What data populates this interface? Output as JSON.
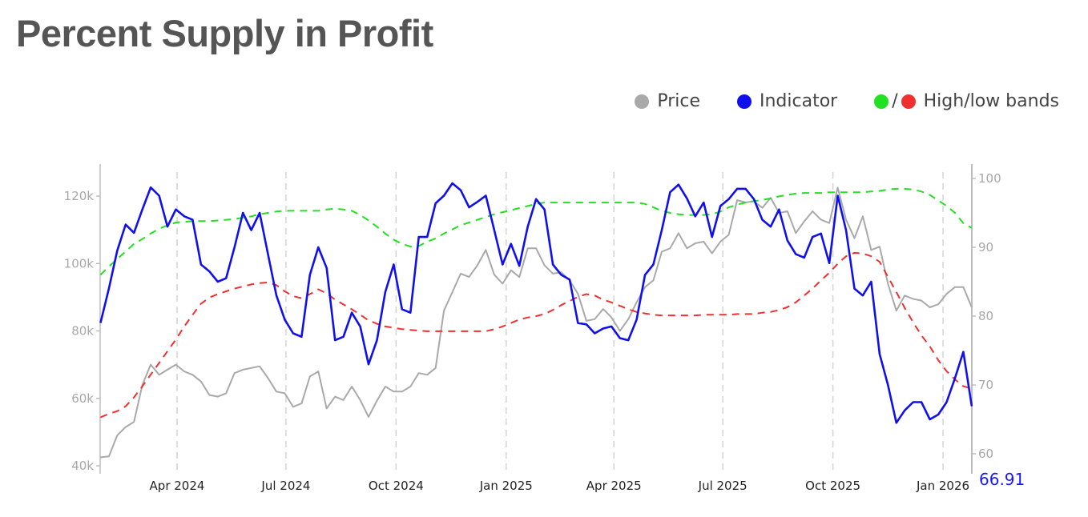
{
  "title": "Percent Supply in Profit",
  "legend": {
    "price": {
      "label": "Price",
      "color": "#a9a9a9"
    },
    "indicator": {
      "label": "Indicator",
      "color": "#1010ee"
    },
    "bands": {
      "label": "High/low bands",
      "separator": "/",
      "high_color": "#22e022",
      "low_color": "#f03030"
    }
  },
  "chart_data": {
    "type": "line",
    "title": "Percent Supply in Profit",
    "legend_position": "top-right",
    "grid": {
      "vertical_dashed": true,
      "horizontal": false
    },
    "x_ticks": [
      {
        "date": "2024-04-01",
        "label": "Apr 2024"
      },
      {
        "date": "2024-07-01",
        "label": "Jul 2024"
      },
      {
        "date": "2024-10-01",
        "label": "Oct 2024"
      },
      {
        "date": "2025-01-01",
        "label": "Jan 2025"
      },
      {
        "date": "2025-04-01",
        "label": "Apr 2025"
      },
      {
        "date": "2025-07-01",
        "label": "Jul 2025"
      },
      {
        "date": "2025-10-01",
        "label": "Oct 2025"
      },
      {
        "date": "2026-01-01",
        "label": "Jan 2026"
      }
    ],
    "y_left": {
      "range": [
        38000,
        128000
      ],
      "ticks": [
        {
          "value": 40000,
          "label": "40k"
        },
        {
          "value": 60000,
          "label": "60k"
        },
        {
          "value": 80000,
          "label": "80k"
        },
        {
          "value": 100000,
          "label": "100k"
        },
        {
          "value": 120000,
          "label": "120k"
        }
      ]
    },
    "y_right": {
      "range": [
        58.5,
        101.5
      ],
      "ticks": [
        {
          "value": 60,
          "label": "60"
        },
        {
          "value": 70,
          "label": "70"
        },
        {
          "value": 80,
          "label": "80"
        },
        {
          "value": 90,
          "label": "90"
        },
        {
          "value": 100,
          "label": "100"
        }
      ]
    },
    "last_value_label": "66.91",
    "x": [
      "2024-01-28",
      "2024-02-04",
      "2024-02-11",
      "2024-02-18",
      "2024-02-25",
      "2024-03-03",
      "2024-03-10",
      "2024-03-17",
      "2024-03-24",
      "2024-03-31",
      "2024-04-07",
      "2024-04-14",
      "2024-04-21",
      "2024-04-28",
      "2024-05-05",
      "2024-05-12",
      "2024-05-19",
      "2024-05-26",
      "2024-06-02",
      "2024-06-09",
      "2024-06-16",
      "2024-06-23",
      "2024-06-30",
      "2024-07-07",
      "2024-07-14",
      "2024-07-21",
      "2024-07-28",
      "2024-08-04",
      "2024-08-11",
      "2024-08-18",
      "2024-08-25",
      "2024-09-01",
      "2024-09-08",
      "2024-09-15",
      "2024-09-22",
      "2024-09-29",
      "2024-10-06",
      "2024-10-13",
      "2024-10-20",
      "2024-10-27",
      "2024-11-03",
      "2024-11-10",
      "2024-11-17",
      "2024-11-24",
      "2024-12-01",
      "2024-12-08",
      "2024-12-15",
      "2024-12-22",
      "2024-12-29",
      "2025-01-05",
      "2025-01-12",
      "2025-01-19",
      "2025-01-26",
      "2025-02-02",
      "2025-02-09",
      "2025-02-16",
      "2025-02-23",
      "2025-03-02",
      "2025-03-09",
      "2025-03-16",
      "2025-03-23",
      "2025-03-30",
      "2025-04-06",
      "2025-04-13",
      "2025-04-20",
      "2025-04-27",
      "2025-05-04",
      "2025-05-11",
      "2025-05-18",
      "2025-05-25",
      "2025-06-01",
      "2025-06-08",
      "2025-06-15",
      "2025-06-22",
      "2025-06-29",
      "2025-07-06",
      "2025-07-13",
      "2025-07-20",
      "2025-07-27",
      "2025-08-03",
      "2025-08-10",
      "2025-08-17",
      "2025-08-24",
      "2025-08-31",
      "2025-09-07",
      "2025-09-14",
      "2025-09-21",
      "2025-09-28",
      "2025-10-05",
      "2025-10-12",
      "2025-10-19",
      "2025-10-26",
      "2025-11-02",
      "2025-11-09",
      "2025-11-16",
      "2025-11-23",
      "2025-11-30",
      "2025-12-07",
      "2025-12-14",
      "2025-12-21",
      "2025-12-28",
      "2026-01-04",
      "2026-01-11",
      "2026-01-18",
      "2026-01-25"
    ],
    "series": [
      {
        "name": "Price",
        "axis": "left",
        "color": "#a9a9a9",
        "style": "solid",
        "values": [
          42500,
          42800,
          49000,
          51500,
          53000,
          64000,
          70000,
          67000,
          68500,
          70000,
          68000,
          67000,
          65000,
          61000,
          60500,
          61500,
          67500,
          68500,
          69000,
          69500,
          66000,
          62000,
          61500,
          57500,
          58500,
          66500,
          68000,
          57000,
          60500,
          59500,
          63500,
          59500,
          54500,
          59300,
          63500,
          62000,
          62000,
          63500,
          67500,
          67000,
          69000,
          86000,
          91500,
          97000,
          96000,
          99500,
          104000,
          96700,
          94000,
          98000,
          96000,
          104500,
          104500,
          99500,
          97000,
          97400,
          95000,
          91000,
          83000,
          83500,
          86500,
          84000,
          80000,
          83500,
          88500,
          93000,
          95000,
          103500,
          104500,
          109000,
          104500,
          106000,
          106500,
          103000,
          106500,
          108500,
          118800,
          118100,
          118500,
          116500,
          119500,
          115000,
          115500,
          109000,
          112500,
          115500,
          113000,
          112000,
          122500,
          113000,
          107500,
          114000,
          104000,
          105000,
          94000,
          86000,
          90500,
          89500,
          89000,
          87000,
          87900,
          91000,
          93000,
          93000,
          87000
        ]
      },
      {
        "name": "Indicator",
        "axis": "right",
        "color": "#1010ee",
        "style": "solid",
        "values": [
          79,
          84,
          89.5,
          93.3,
          92.1,
          95.5,
          98.7,
          97.5,
          93,
          95.5,
          94.5,
          94,
          87.5,
          86.5,
          85,
          85.5,
          90,
          95,
          92.5,
          95,
          89,
          83,
          79.5,
          77.5,
          77,
          86,
          90,
          87,
          76.5,
          77,
          80.5,
          78.5,
          73,
          76.5,
          83.5,
          87.5,
          81,
          80.5,
          91.5,
          91.5,
          96.4,
          97.5,
          99.3,
          98.3,
          95.8,
          96.6,
          97.5,
          92.5,
          87.5,
          90.5,
          87.3,
          93,
          97,
          95.5,
          87.5,
          86,
          85.3,
          79,
          78.8,
          77.5,
          78.2,
          78.5,
          76.8,
          76.5,
          79.5,
          86,
          87.5,
          92.5,
          98,
          99.1,
          97.1,
          94.5,
          96.5,
          91.5,
          96,
          97,
          98.5,
          98.5,
          97,
          94,
          93,
          95.5,
          91,
          89,
          88.5,
          91.5,
          92,
          87.7,
          97.5,
          92.5,
          84,
          83,
          85,
          74.5,
          70,
          64.5,
          66.3,
          67.5,
          67.5,
          65,
          65.7,
          67.5,
          71,
          74.8,
          66.91
        ]
      },
      {
        "name": "High band",
        "axis": "right",
        "color": "#22e022",
        "style": "dashed",
        "values": [
          86,
          87.2,
          88.3,
          89.4,
          90.5,
          91.2,
          92,
          92.7,
          93.2,
          93.6,
          93.7,
          93.8,
          93.8,
          93.8,
          93.9,
          94,
          94.1,
          94.3,
          94.5,
          94.8,
          95,
          95.2,
          95.3,
          95.3,
          95.3,
          95.3,
          95.3,
          95.5,
          95.6,
          95.5,
          95.3,
          94.7,
          93.9,
          93,
          92,
          91.1,
          90.5,
          90.1,
          90.2,
          90.8,
          91.3,
          92,
          92.6,
          93.2,
          93.6,
          94,
          94.4,
          94.8,
          95.1,
          95.4,
          95.7,
          96,
          96.3,
          96.5,
          96.5,
          96.5,
          96.5,
          96.5,
          96.5,
          96.5,
          96.5,
          96.5,
          96.5,
          96.5,
          96.5,
          96.3,
          95.8,
          95.3,
          95,
          94.8,
          94.7,
          94.7,
          94.7,
          94.8,
          95.2,
          95.8,
          96.2,
          96.5,
          96.7,
          96.9,
          97.1,
          97.4,
          97.6,
          97.8,
          97.9,
          97.9,
          97.9,
          98,
          98,
          98,
          98,
          98,
          98.1,
          98.2,
          98.4,
          98.5,
          98.5,
          98.4,
          98.1,
          97.6,
          96.8,
          96,
          95,
          93.5,
          92.8
        ]
      },
      {
        "name": "Low band",
        "axis": "right",
        "color": "#f03030",
        "style": "dashed",
        "values": [
          65.3,
          65.8,
          66.2,
          66.9,
          68.2,
          69.8,
          71.5,
          73.2,
          74.9,
          76.6,
          78.5,
          80.2,
          81.8,
          82.7,
          83.2,
          83.6,
          84,
          84.3,
          84.6,
          84.8,
          84.9,
          84.5,
          83.6,
          82.9,
          82.6,
          83.2,
          83.9,
          83.3,
          82.4,
          81.7,
          81,
          80.2,
          79.4,
          78.9,
          78.5,
          78.3,
          78.1,
          78,
          77.9,
          77.8,
          77.8,
          77.8,
          77.8,
          77.8,
          77.8,
          77.8,
          77.8,
          78.1,
          78.5,
          79,
          79.5,
          79.8,
          80,
          80.3,
          80.9,
          81.6,
          82.2,
          82.8,
          83.2,
          83,
          82.4,
          82,
          81.5,
          81,
          80.6,
          80.4,
          80.2,
          80.1,
          80.1,
          80.1,
          80.1,
          80.1,
          80.2,
          80.2,
          80.2,
          80.2,
          80.3,
          80.3,
          80.3,
          80.5,
          80.6,
          80.9,
          81.3,
          82,
          83,
          84,
          85.2,
          86.3,
          87.6,
          88.7,
          89.2,
          89.1,
          88.7,
          87.9,
          85.7,
          83.5,
          81.2,
          79.1,
          77.2,
          75.6,
          73.6,
          72,
          70.8,
          69.8,
          69.5
        ]
      }
    ]
  }
}
